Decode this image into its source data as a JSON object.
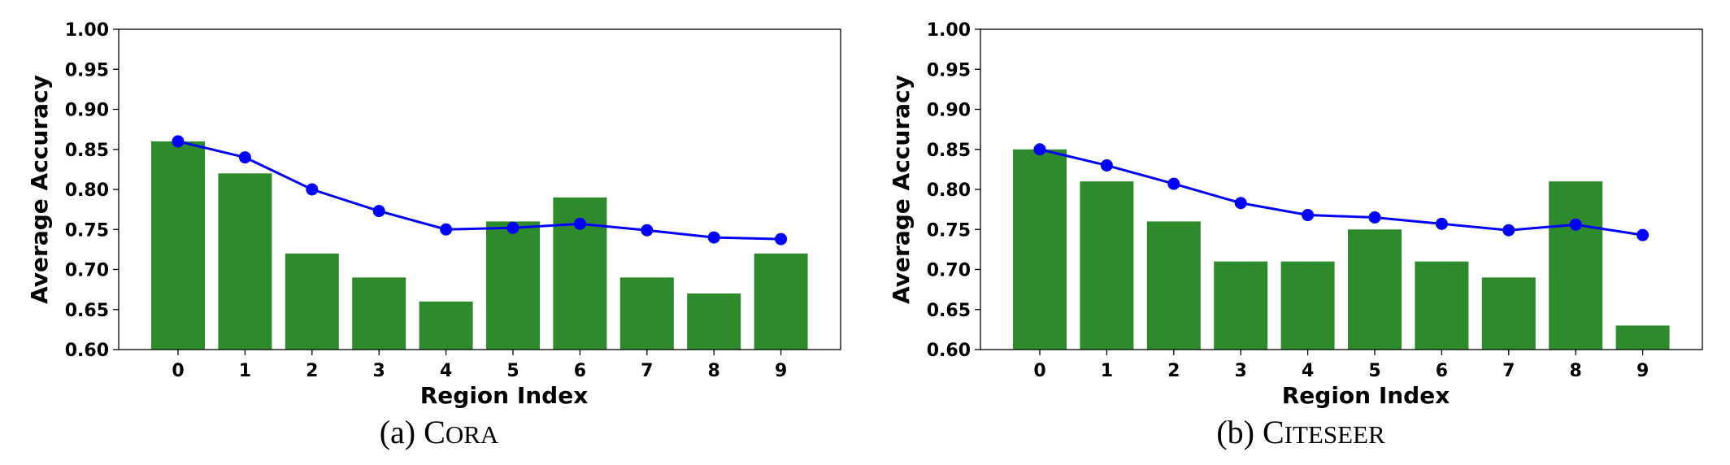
{
  "chart_data": [
    {
      "type": "bar",
      "caption_prefix": "(a) ",
      "caption_name": "Cora",
      "xlabel": "Region Index",
      "ylabel": "Average Accuracy",
      "ylim": [
        0.6,
        1.0
      ],
      "yticks": [
        "0.60",
        "0.65",
        "0.70",
        "0.75",
        "0.80",
        "0.85",
        "0.90",
        "0.95",
        "1.00"
      ],
      "categories": [
        "0",
        "1",
        "2",
        "3",
        "4",
        "5",
        "6",
        "7",
        "8",
        "9"
      ],
      "bar_values": [
        0.86,
        0.82,
        0.72,
        0.69,
        0.66,
        0.76,
        0.79,
        0.69,
        0.67,
        0.72
      ],
      "line_values": [
        0.86,
        0.84,
        0.8,
        0.773,
        0.75,
        0.752,
        0.757,
        0.749,
        0.74,
        0.738
      ],
      "bar_color": "#2e8b2b",
      "line_color": "#0000ff",
      "grid": false,
      "legend": "none"
    },
    {
      "type": "bar",
      "caption_prefix": "(b) ",
      "caption_name": "Citeseer",
      "xlabel": "Region Index",
      "ylabel": "Average Accuracy",
      "ylim": [
        0.6,
        1.0
      ],
      "yticks": [
        "0.60",
        "0.65",
        "0.70",
        "0.75",
        "0.80",
        "0.85",
        "0.90",
        "0.95",
        "1.00"
      ],
      "categories": [
        "0",
        "1",
        "2",
        "3",
        "4",
        "5",
        "6",
        "7",
        "8",
        "9"
      ],
      "bar_values": [
        0.85,
        0.81,
        0.76,
        0.71,
        0.71,
        0.75,
        0.71,
        0.69,
        0.81,
        0.63
      ],
      "line_values": [
        0.85,
        0.83,
        0.807,
        0.783,
        0.768,
        0.765,
        0.757,
        0.749,
        0.756,
        0.743
      ],
      "bar_color": "#2e8b2b",
      "line_color": "#0000ff",
      "grid": false,
      "legend": "none"
    }
  ]
}
